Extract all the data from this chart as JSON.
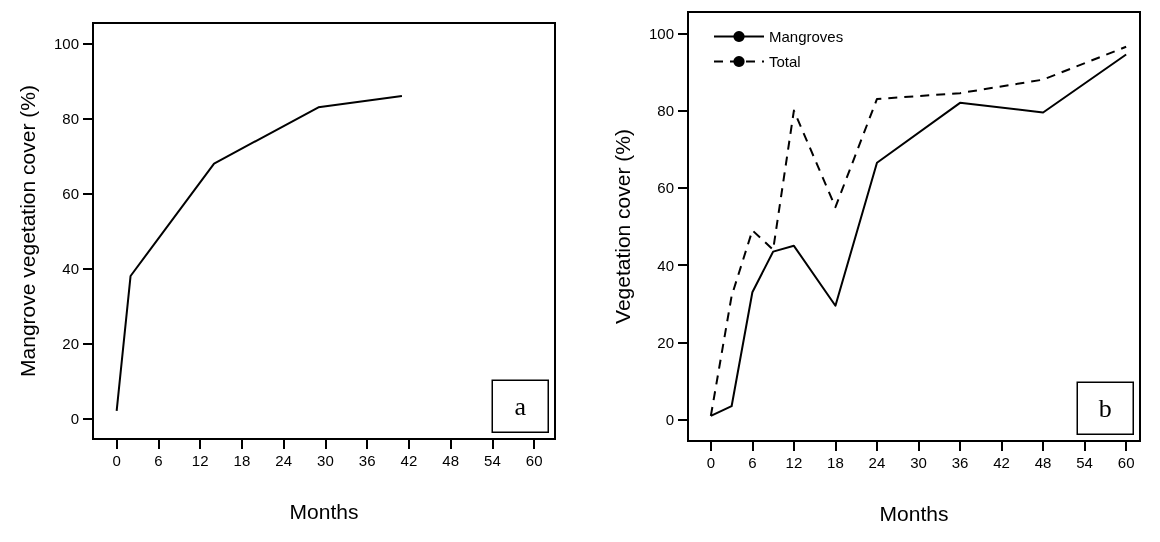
{
  "chart_data": [
    {
      "type": "line",
      "xlabel": "Months",
      "ylabel": "Mangrove vegetation cover (%)",
      "annotations": [
        "a"
      ],
      "xlim": [
        -3.4,
        63
      ],
      "ylim": [
        -5.5,
        105.5
      ],
      "xticks": [
        0,
        6,
        12,
        18,
        24,
        30,
        36,
        42,
        48,
        54,
        60
      ],
      "yticks": [
        0,
        20,
        40,
        60,
        80,
        100
      ],
      "grid": false,
      "legend": false,
      "marker": "none",
      "series": [
        {
          "color": "#000000",
          "line_style": "solid",
          "x": [
            0,
            2,
            14,
            29,
            41
          ],
          "values": [
            2,
            38,
            68,
            83,
            86
          ]
        }
      ]
    },
    {
      "type": "line",
      "xlabel": "Months",
      "ylabel": "Vegetation cover (%)",
      "annotations": [
        "b"
      ],
      "xlim": [
        -3.3,
        62
      ],
      "ylim": [
        -5.5,
        105.5
      ],
      "xticks": [
        0,
        6,
        12,
        18,
        24,
        30,
        36,
        42,
        48,
        54,
        60
      ],
      "yticks": [
        0,
        20,
        40,
        60,
        80,
        100
      ],
      "grid": false,
      "legend": "top left",
      "marker": "none",
      "series": [
        {
          "name": "Mangroves",
          "color": "#000000",
          "line_style": "solid",
          "x": [
            0,
            3,
            6,
            9,
            12,
            18,
            24,
            36,
            48,
            60
          ],
          "values": [
            1,
            3.5,
            33,
            43.5,
            45,
            29.5,
            66.5,
            82,
            79.5,
            94.5
          ]
        },
        {
          "name": "Total",
          "color": "#000000",
          "line_style": "dashed",
          "x": [
            0,
            3,
            6,
            9,
            12,
            18,
            24,
            36,
            48,
            60
          ],
          "values": [
            1,
            32,
            49,
            44,
            80,
            55,
            83,
            84.5,
            88,
            96.5
          ]
        }
      ]
    }
  ]
}
